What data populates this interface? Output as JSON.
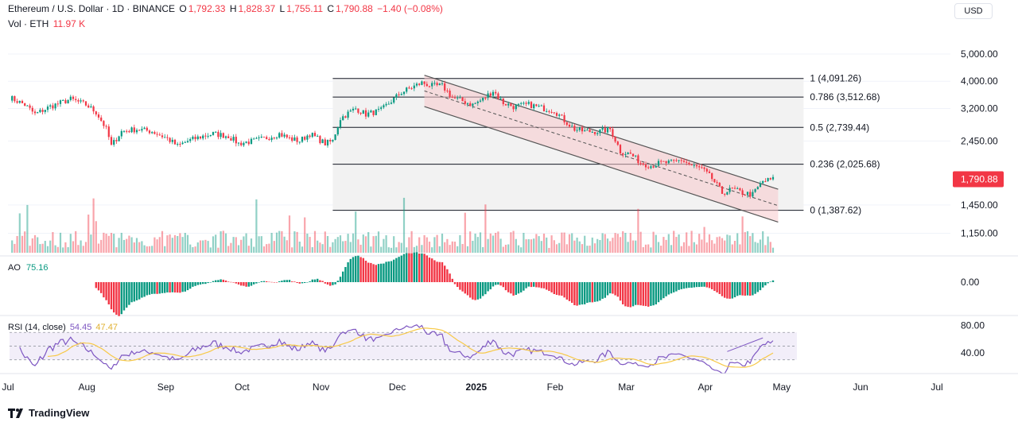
{
  "header": {
    "symbol": "Ethereum / U.S. Dollar · 1D · BINANCE",
    "open_label": "O",
    "open": "1,792.33",
    "high_label": "H",
    "high": "1,828.37",
    "low_label": "L",
    "low": "1,755.11",
    "close_label": "C",
    "close": "1,790.88",
    "change": "−1.40 (−0.08%)",
    "vol_label": "Vol · ETH",
    "vol": "11.97 K"
  },
  "currency_button": "USD",
  "brand": "TradingView",
  "colors": {
    "up": "#089981",
    "down": "#f23645",
    "rsi": "#7e57c2",
    "rsi_ma": "#f7c948",
    "fib_line": "#131722",
    "channel": "#f8c8cc",
    "grid": "#f0f3fa"
  },
  "chart_data": {
    "type": "candlestick",
    "title": "Ethereum / U.S. Dollar · 1D · BINANCE",
    "last_price": "1,790.88",
    "y_scale": "log",
    "ylim": [
      980,
      6000
    ],
    "y_ticks": [
      {
        "value": 5000,
        "label": "5,000.00"
      },
      {
        "value": 4000,
        "label": "4,000.00"
      },
      {
        "value": 3200,
        "label": "3,200.00"
      },
      {
        "value": 2450,
        "label": "2,450.00"
      },
      {
        "value": 1450,
        "label": "1,450.00"
      },
      {
        "value": 1150,
        "label": "1,150.00"
      }
    ],
    "x_labels": [
      "Jul",
      "Aug",
      "Sep",
      "Oct",
      "Nov",
      "Dec",
      "2025",
      "Feb",
      "Mar",
      "Apr",
      "May",
      "Jun",
      "Jul"
    ],
    "price_path": [
      [
        0,
        3500
      ],
      [
        6,
        3300
      ],
      [
        10,
        3050
      ],
      [
        16,
        3250
      ],
      [
        24,
        3450
      ],
      [
        30,
        3300
      ],
      [
        34,
        3100
      ],
      [
        38,
        2700
      ],
      [
        40,
        2350
      ],
      [
        44,
        2650
      ],
      [
        50,
        2700
      ],
      [
        56,
        2650
      ],
      [
        62,
        2500
      ],
      [
        66,
        2350
      ],
      [
        70,
        2450
      ],
      [
        76,
        2550
      ],
      [
        80,
        2600
      ],
      [
        86,
        2550
      ],
      [
        90,
        2400
      ],
      [
        96,
        2450
      ],
      [
        100,
        2500
      ],
      [
        106,
        2600
      ],
      [
        110,
        2500
      ],
      [
        114,
        2450
      ],
      [
        118,
        2600
      ],
      [
        124,
        2400
      ],
      [
        127,
        2450
      ],
      [
        130,
        2950
      ],
      [
        136,
        3200
      ],
      [
        140,
        3050
      ],
      [
        146,
        3150
      ],
      [
        150,
        3400
      ],
      [
        154,
        3650
      ],
      [
        158,
        3800
      ],
      [
        162,
        3950
      ],
      [
        166,
        3850
      ],
      [
        170,
        3850
      ],
      [
        174,
        3500
      ],
      [
        178,
        3400
      ],
      [
        182,
        3300
      ],
      [
        186,
        3450
      ],
      [
        190,
        3700
      ],
      [
        194,
        3350
      ],
      [
        198,
        3250
      ],
      [
        204,
        3300
      ],
      [
        210,
        3200
      ],
      [
        214,
        3150
      ],
      [
        218,
        2900
      ],
      [
        222,
        2700
      ],
      [
        226,
        2650
      ],
      [
        232,
        2650
      ],
      [
        236,
        2700
      ],
      [
        240,
        2250
      ],
      [
        244,
        2200
      ],
      [
        248,
        2050
      ],
      [
        252,
        2000
      ],
      [
        256,
        2050
      ],
      [
        260,
        2050
      ],
      [
        264,
        2100
      ],
      [
        268,
        2000
      ],
      [
        272,
        1950
      ],
      [
        276,
        1800
      ],
      [
        280,
        1600
      ],
      [
        284,
        1650
      ],
      [
        288,
        1600
      ],
      [
        292,
        1580
      ],
      [
        296,
        1760
      ],
      [
        300,
        1790
      ]
    ],
    "fib_levels": [
      {
        "ratio": "1",
        "value": 4091.26,
        "label": "1 (4,091.26)"
      },
      {
        "ratio": "0.786",
        "value": 3512.68,
        "label": "0.786 (3,512.68)"
      },
      {
        "ratio": "0.5",
        "value": 2739.44,
        "label": "0.5 (2,739.44)"
      },
      {
        "ratio": "0.236",
        "value": 2025.68,
        "label": "0.236 (2,025.68)"
      },
      {
        "ratio": "0",
        "value": 1387.62,
        "label": "0 (1,387.62)"
      }
    ],
    "fib_range_days": [
      127,
      312
    ],
    "channel": {
      "start_day": 163,
      "end_day": 302,
      "upper_start": 4200,
      "upper_end": 1650,
      "lower_start": 3250,
      "lower_end": 1260
    },
    "indicators": {
      "ao": {
        "label": "AO",
        "value": "75.16",
        "zero_tick": "0.00",
        "ylim": [
          -480,
          480
        ]
      },
      "rsi": {
        "label": "RSI (14, close)",
        "value": "54.45",
        "ma_value": "47.47",
        "ylim": [
          18,
          90
        ],
        "ticks": [
          {
            "value": 80,
            "label": "80.00"
          },
          {
            "value": 40,
            "label": "40.00"
          }
        ],
        "upper": 70,
        "middle": 50,
        "lower": 30
      }
    },
    "volume_note": "daily volume bars (ETH)"
  }
}
